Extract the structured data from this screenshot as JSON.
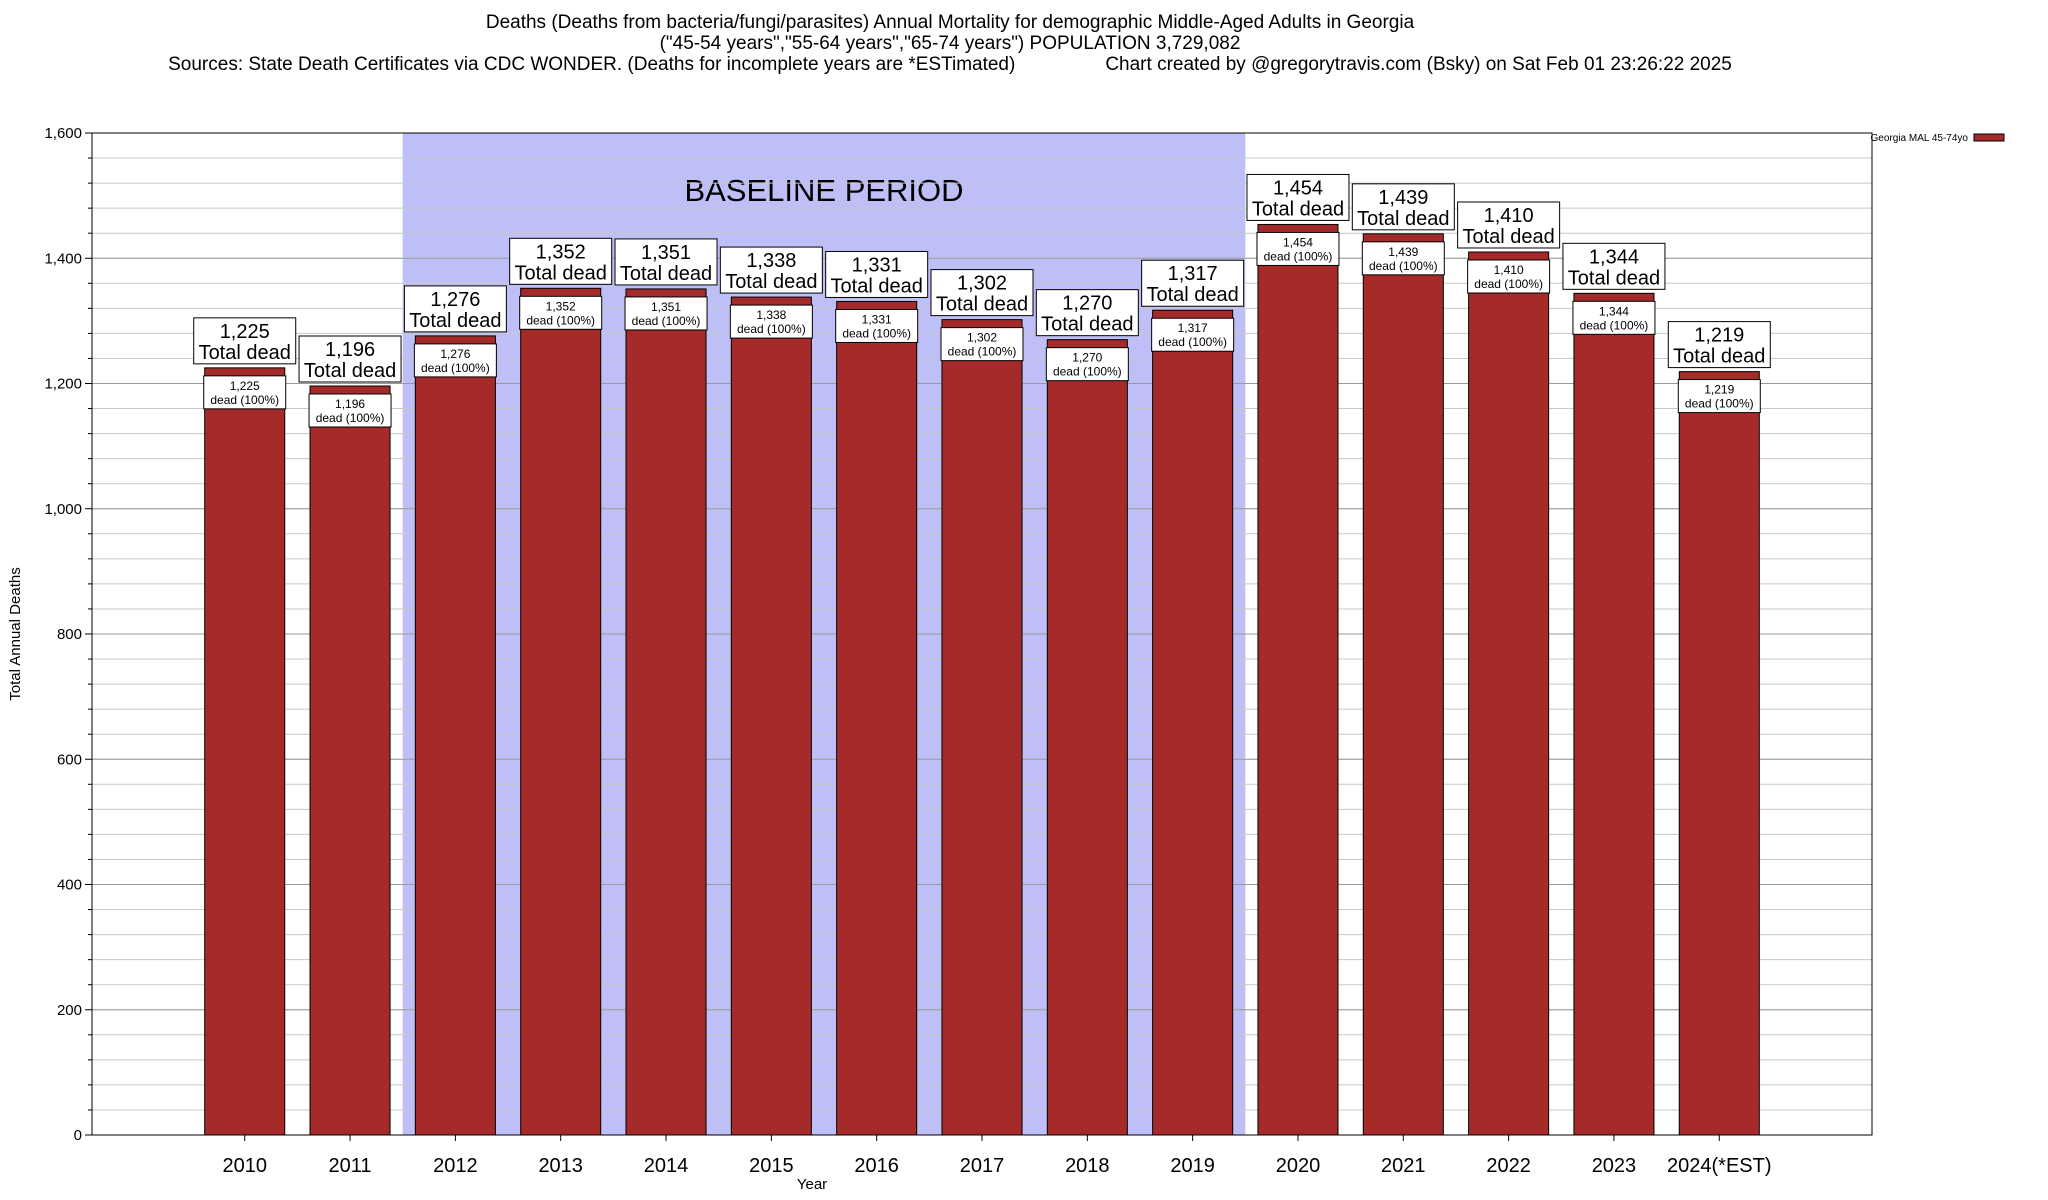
{
  "header": {
    "title_line1": "Deaths (Deaths from bacteria/fungi/parasites) Annual Mortality for demographic Middle-Aged Adults in Georgia",
    "title_line2": "(\"45-54 years\",\"55-64 years\",\"65-74 years\") POPULATION 3,729,082",
    "sources": "Sources: State Death Certificates via CDC WONDER. (Deaths for incomplete years are *ESTimated)",
    "credit": "Chart created by @gregorytravis.com (Bsky) on Sat Feb 01 23:26:22 2025"
  },
  "chart_data": {
    "type": "bar",
    "categories": [
      "2010",
      "2011",
      "2012",
      "2013",
      "2014",
      "2015",
      "2016",
      "2017",
      "2018",
      "2019",
      "2020",
      "2021",
      "2022",
      "2023",
      "2024(*EST)"
    ],
    "series": [
      {
        "name": "Georgia MAL 45-74yo",
        "values": [
          1225,
          1196,
          1276,
          1352,
          1351,
          1338,
          1331,
          1302,
          1270,
          1317,
          1454,
          1439,
          1410,
          1344,
          1219
        ],
        "labels": [
          "1,225",
          "1,196",
          "1,276",
          "1,352",
          "1,351",
          "1,338",
          "1,331",
          "1,302",
          "1,270",
          "1,317",
          "1,454",
          "1,439",
          "1,410",
          "1,344",
          "1,219"
        ]
      }
    ],
    "top_label_suffix": "Total dead",
    "inner_label_suffix": "dead (100%)",
    "xlabel": "Year",
    "ylabel": "Total Annual Deaths",
    "ylim": [
      0,
      1600
    ],
    "yticks": [
      0,
      200,
      400,
      600,
      800,
      1000,
      1200,
      1400,
      1600
    ],
    "ytick_labels": [
      "0",
      "200",
      "400",
      "600",
      "800",
      "1,000",
      "1,200",
      "1,400",
      "1,600"
    ],
    "minor_tick_step": 40,
    "baseline": {
      "label": "BASELINE PERIOD",
      "from": "2012",
      "to": "2019"
    },
    "legend_position": "top-right",
    "grid": true,
    "colors": {
      "bar": "#a52a2a",
      "baseline": "#bfbff7",
      "grid": "#c8c8c8"
    }
  }
}
